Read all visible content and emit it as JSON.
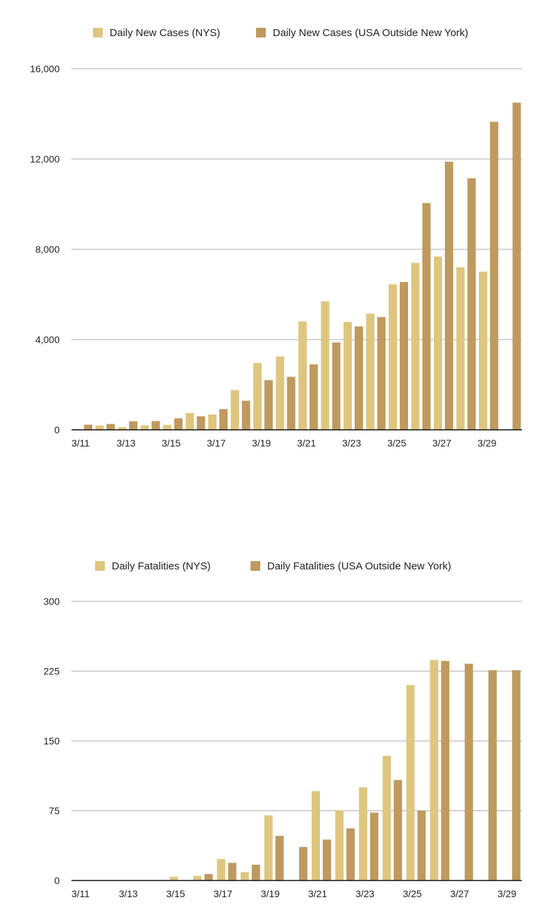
{
  "colors": {
    "nys": "#dfc67f",
    "usa": "#bf9a5f"
  },
  "chart_data": [
    {
      "type": "bar",
      "legend_position": "top",
      "grid": true,
      "categories": [
        "3/11",
        "3/12",
        "3/13",
        "3/14",
        "3/15",
        "3/16",
        "3/17",
        "3/18",
        "3/19",
        "3/20",
        "3/21",
        "3/22",
        "3/23",
        "3/24",
        "3/25",
        "3/26",
        "3/27",
        "3/28",
        "3/29",
        "3/30"
      ],
      "tick_labels": [
        "3/11",
        "3/13",
        "3/15",
        "3/17",
        "3/19",
        "3/21",
        "3/23",
        "3/25",
        "3/27",
        "3/29"
      ],
      "ylim": [
        0,
        16000
      ],
      "yticks": [
        0,
        4000,
        8000,
        12000,
        16000
      ],
      "ytick_labels": [
        "0",
        "4,000",
        "8,000",
        "12,000",
        "16,000"
      ],
      "series": [
        {
          "name": "Daily New Cases (NYS)",
          "color": "#dfc67f",
          "values": [
            40,
            190,
            120,
            200,
            220,
            750,
            680,
            1760,
            2960,
            3250,
            4800,
            5700,
            4780,
            5150,
            6450,
            7400,
            7680,
            7200,
            7010,
            0
          ]
        },
        {
          "name": "Daily New Cases (USA Outside New York)",
          "color": "#bf9a5f",
          "values": [
            230,
            260,
            380,
            390,
            510,
            600,
            920,
            1290,
            2200,
            2350,
            2900,
            3870,
            4580,
            5000,
            6550,
            10050,
            11880,
            11150,
            13650,
            14500
          ]
        }
      ]
    },
    {
      "type": "bar",
      "legend_position": "top",
      "grid": true,
      "categories": [
        "3/11",
        "3/12",
        "3/13",
        "3/14",
        "3/15",
        "3/16",
        "3/17",
        "3/18",
        "3/19",
        "3/20",
        "3/21",
        "3/22",
        "3/23",
        "3/24",
        "3/25",
        "3/26",
        "3/27",
        "3/28",
        "3/29"
      ],
      "tick_labels": [
        "3/11",
        "3/13",
        "3/15",
        "3/17",
        "3/19",
        "3/21",
        "3/23",
        "3/25",
        "3/27",
        "3/29"
      ],
      "ylim": [
        0,
        300
      ],
      "yticks": [
        0,
        75,
        150,
        225,
        300
      ],
      "ytick_labels": [
        "0",
        "75",
        "150",
        "225",
        "300"
      ],
      "series": [
        {
          "name": "Daily Fatalities (NYS)",
          "color": "#dfc67f",
          "values": [
            0,
            0,
            0,
            0,
            4,
            5,
            23,
            9,
            70,
            0,
            96,
            75,
            100,
            134,
            210,
            237,
            0,
            0,
            0
          ]
        },
        {
          "name": "Daily Fatalities (USA Outside New York)",
          "color": "#bf9a5f",
          "values": [
            0,
            0,
            0,
            0,
            0,
            7,
            19,
            17,
            48,
            36,
            44,
            56,
            73,
            108,
            75,
            236,
            233,
            226,
            226
          ]
        }
      ]
    }
  ]
}
